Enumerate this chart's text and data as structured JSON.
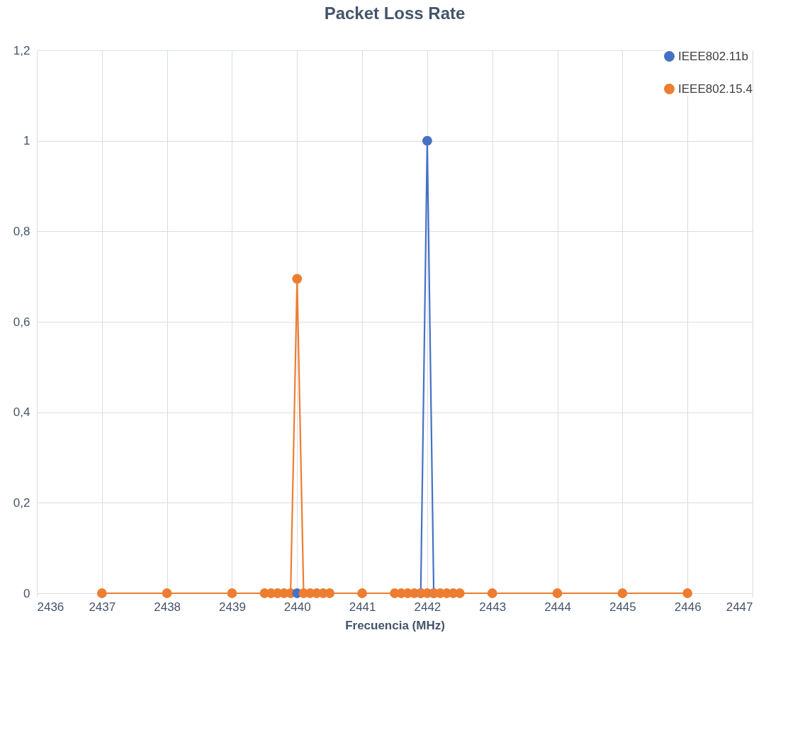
{
  "chart_data": {
    "type": "line",
    "title": "Packet Loss Rate",
    "xlabel": "Frecuencia (MHz)",
    "x": [
      2437,
      2438,
      2439,
      2439.5,
      2439.6,
      2439.7,
      2439.8,
      2439.9,
      2440,
      2440.1,
      2440.2,
      2440.3,
      2440.4,
      2440.5,
      2441,
      2441.5,
      2441.6,
      2441.7,
      2441.8,
      2441.9,
      2442,
      2442.1,
      2442.2,
      2442.3,
      2442.4,
      2442.5,
      2443,
      2444,
      2445,
      2446
    ],
    "series": [
      {
        "name": "IEEE802.11b",
        "color": "#4472c4",
        "values": [
          null,
          null,
          null,
          null,
          null,
          null,
          null,
          null,
          0,
          null,
          null,
          null,
          null,
          null,
          null,
          null,
          null,
          null,
          null,
          0,
          1,
          0,
          null,
          null,
          null,
          null,
          null,
          null,
          null,
          null
        ]
      },
      {
        "name": "IEEE802.15.4",
        "color": "#ed7d31",
        "values": [
          0,
          0,
          0,
          0,
          0,
          0,
          0,
          0,
          0.695,
          0,
          0,
          0,
          0,
          0,
          0,
          0,
          0,
          0,
          0,
          0,
          0,
          0,
          0,
          0,
          0,
          0,
          0,
          0,
          0,
          0
        ]
      }
    ],
    "xlim": [
      2436,
      2447
    ],
    "xticks": [
      2436,
      2437,
      2438,
      2439,
      2440,
      2441,
      2442,
      2443,
      2444,
      2445,
      2446,
      2447
    ],
    "ylim": [
      0,
      1.2
    ],
    "yticks": [
      {
        "value": 0,
        "label": "0"
      },
      {
        "value": 0.2,
        "label": "0,2"
      },
      {
        "value": 0.4,
        "label": "0,4"
      },
      {
        "value": 0.6,
        "label": "0,6"
      },
      {
        "value": 0.8,
        "label": "0,8"
      },
      {
        "value": 1,
        "label": "1"
      },
      {
        "value": 1.2,
        "label": "1,2"
      }
    ],
    "grid": true,
    "legend": "top right",
    "marker": "circle",
    "line_style": "solid"
  }
}
